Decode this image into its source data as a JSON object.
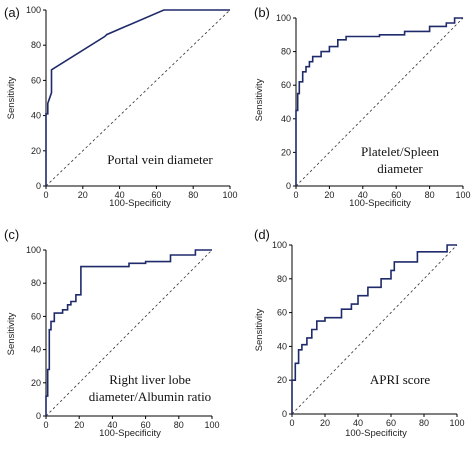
{
  "chart_data": [
    {
      "type": "line",
      "panel_label": "(a)",
      "annotation": [
        "Portal vein diameter"
      ],
      "xlabel": "100-Specificity",
      "ylabel": "Sensitivity",
      "xlim": [
        0,
        100
      ],
      "ylim": [
        0,
        100
      ],
      "xticks": [
        0,
        20,
        40,
        60,
        80,
        100
      ],
      "yticks": [
        0,
        20,
        40,
        60,
        80,
        100
      ],
      "reference_line": true,
      "series": [
        {
          "x": [
            0,
            0,
            0,
            1,
            1,
            3,
            3,
            32,
            33,
            64,
            100
          ],
          "y": [
            0,
            40,
            41,
            41,
            47,
            53,
            66,
            85,
            86,
            100,
            100
          ]
        }
      ]
    },
    {
      "type": "line",
      "panel_label": "(b)",
      "annotation": [
        "Platelet/Spleen",
        "diameter"
      ],
      "xlabel": "100-Specificity",
      "ylabel": "Sensitivity",
      "xlim": [
        0,
        100
      ],
      "ylim": [
        0,
        100
      ],
      "xticks": [
        0,
        20,
        40,
        60,
        80,
        100
      ],
      "yticks": [
        0,
        20,
        40,
        60,
        80,
        100
      ],
      "reference_line": true,
      "series": [
        {
          "x": [
            0,
            0,
            1,
            1,
            2,
            2,
            4,
            4,
            6,
            6,
            8,
            8,
            10,
            10,
            15,
            15,
            20,
            20,
            25,
            25,
            30,
            30,
            50,
            50,
            65,
            65,
            80,
            80,
            90,
            90,
            95,
            95,
            100
          ],
          "y": [
            0,
            45,
            45,
            55,
            55,
            62,
            62,
            68,
            68,
            71,
            71,
            74,
            74,
            77,
            77,
            80,
            80,
            83,
            83,
            87,
            87,
            89,
            89,
            90,
            90,
            92,
            92,
            95,
            95,
            97,
            97,
            100,
            100
          ]
        }
      ]
    },
    {
      "type": "line",
      "panel_label": "(c)",
      "annotation": [
        "Right liver lobe",
        "diameter/Albumin ratio"
      ],
      "xlabel": "100-Specificity",
      "ylabel": "Sensitivity",
      "xlim": [
        0,
        100
      ],
      "ylim": [
        0,
        100
      ],
      "xticks": [
        0,
        20,
        40,
        60,
        80,
        100
      ],
      "yticks": [
        0,
        20,
        40,
        60,
        80,
        100
      ],
      "reference_line": true,
      "series": [
        {
          "x": [
            0,
            0,
            1,
            1,
            2,
            2,
            3,
            3,
            5,
            5,
            10,
            10,
            13,
            13,
            15,
            15,
            18,
            18,
            21,
            21,
            50,
            50,
            60,
            60,
            75,
            75,
            90,
            90,
            100
          ],
          "y": [
            0,
            12,
            12,
            28,
            28,
            52,
            52,
            57,
            57,
            62,
            62,
            64,
            64,
            67,
            67,
            69,
            69,
            73,
            73,
            90,
            90,
            92,
            92,
            93,
            93,
            97,
            97,
            100,
            100
          ]
        }
      ]
    },
    {
      "type": "line",
      "panel_label": "(d)",
      "annotation": [
        "APRI score"
      ],
      "xlabel": "100-Specificity",
      "ylabel": "Sensitivity",
      "xlim": [
        0,
        100
      ],
      "ylim": [
        0,
        100
      ],
      "xticks": [
        0,
        20,
        40,
        60,
        80,
        100
      ],
      "yticks": [
        0,
        20,
        40,
        60,
        80,
        100
      ],
      "reference_line": true,
      "series": [
        {
          "x": [
            0,
            0,
            2,
            2,
            4,
            4,
            6,
            6,
            9,
            9,
            12,
            12,
            15,
            15,
            20,
            20,
            24,
            24,
            30,
            30,
            36,
            36,
            40,
            40,
            46,
            46,
            54,
            54,
            60,
            60,
            62,
            62,
            76,
            76,
            94,
            94,
            100
          ],
          "y": [
            0,
            20,
            20,
            30,
            30,
            38,
            38,
            41,
            41,
            45,
            45,
            50,
            50,
            55,
            55,
            57,
            57,
            57,
            57,
            62,
            62,
            65,
            65,
            70,
            70,
            75,
            75,
            80,
            80,
            85,
            85,
            90,
            90,
            96,
            96,
            100,
            100
          ]
        }
      ]
    }
  ]
}
